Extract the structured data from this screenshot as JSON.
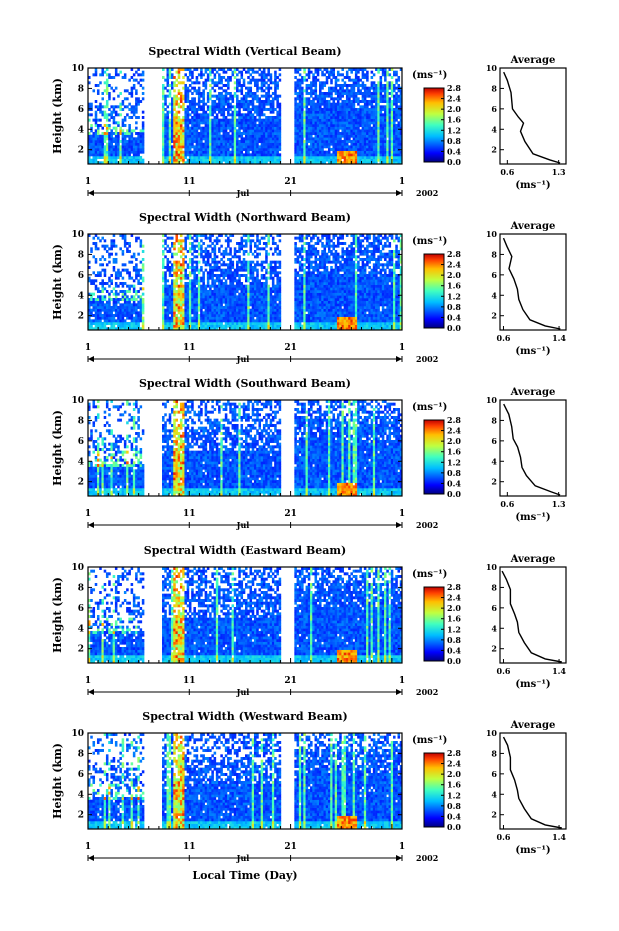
{
  "figure": {
    "xlabel": "Local Time (Day)",
    "month": "Jul",
    "year": "2002",
    "avg_title": "Average"
  },
  "chart_data": [
    {
      "type": "heatmap",
      "title": "Spectral Width (Vertical Beam)",
      "ylabel": "Height (km)",
      "xlabel": "Local Time (Day)",
      "x_ticks": [
        "1",
        "11",
        "21",
        "1"
      ],
      "xlim": [
        1,
        32
      ],
      "y_ticks": [
        "2",
        "4",
        "6",
        "8",
        "10"
      ],
      "ylim": [
        0.6,
        10
      ],
      "colorbar": {
        "label": "(ms⁻¹)",
        "ticks": [
          "0.0",
          "0.4",
          "0.8",
          "1.2",
          "1.6",
          "2.0",
          "2.4",
          "2.8"
        ],
        "range": [
          0,
          2.8
        ]
      },
      "data_gaps_days": [
        [
          6.5,
          8.2
        ],
        [
          20.0,
          21.3
        ]
      ],
      "average": {
        "title": "Average",
        "xlabel": "(ms⁻¹)",
        "x_ticks": [
          "0.6",
          "1.3"
        ],
        "xlim": [
          0.5,
          1.4
        ],
        "y_ticks": [
          "2",
          "4",
          "6",
          "8",
          "10"
        ],
        "ylim": [
          0.6,
          10
        ],
        "profile": [
          [
            0.55,
            9.6
          ],
          [
            0.6,
            8.8
          ],
          [
            0.65,
            7.6
          ],
          [
            0.67,
            6.0
          ],
          [
            0.75,
            5.2
          ],
          [
            0.82,
            4.6
          ],
          [
            0.78,
            3.8
          ],
          [
            0.84,
            2.8
          ],
          [
            0.95,
            1.6
          ],
          [
            1.18,
            1.0
          ],
          [
            1.32,
            0.7
          ]
        ]
      }
    },
    {
      "type": "heatmap",
      "title": "Spectral Width (Northward Beam)",
      "ylabel": "Height (km)",
      "xlabel": "Local Time (Day)",
      "x_ticks": [
        "1",
        "11",
        "21",
        "1"
      ],
      "xlim": [
        1,
        32
      ],
      "y_ticks": [
        "2",
        "4",
        "6",
        "8",
        "10"
      ],
      "ylim": [
        0.6,
        10
      ],
      "colorbar": {
        "label": "(ms⁻¹)",
        "ticks": [
          "0.0",
          "0.4",
          "0.8",
          "1.2",
          "1.6",
          "2.0",
          "2.4",
          "2.8"
        ],
        "range": [
          0,
          2.8
        ]
      },
      "data_gaps_days": [
        [
          6.5,
          8.2
        ],
        [
          20.0,
          21.3
        ]
      ],
      "average": {
        "title": "Average",
        "xlabel": "(ms⁻¹)",
        "x_ticks": [
          "0.6",
          "1.4"
        ],
        "xlim": [
          0.55,
          1.5
        ],
        "y_ticks": [
          "2",
          "4",
          "6",
          "8",
          "10"
        ],
        "ylim": [
          0.6,
          10
        ],
        "profile": [
          [
            0.6,
            9.6
          ],
          [
            0.65,
            8.8
          ],
          [
            0.72,
            7.8
          ],
          [
            0.68,
            6.6
          ],
          [
            0.75,
            5.6
          ],
          [
            0.8,
            4.6
          ],
          [
            0.82,
            3.6
          ],
          [
            0.88,
            2.6
          ],
          [
            0.98,
            1.6
          ],
          [
            1.2,
            1.0
          ],
          [
            1.42,
            0.7
          ]
        ]
      }
    },
    {
      "type": "heatmap",
      "title": "Spectral Width (Southward Beam)",
      "ylabel": "Height (km)",
      "xlabel": "Local Time (Day)",
      "x_ticks": [
        "1",
        "11",
        "21",
        "1"
      ],
      "xlim": [
        1,
        32
      ],
      "y_ticks": [
        "2",
        "4",
        "6",
        "8",
        "10"
      ],
      "ylim": [
        0.6,
        10
      ],
      "colorbar": {
        "label": "(ms⁻¹)",
        "ticks": [
          "0.0",
          "0.4",
          "0.8",
          "1.2",
          "1.6",
          "2.0",
          "2.4",
          "2.8"
        ],
        "range": [
          0,
          2.8
        ]
      },
      "data_gaps_days": [
        [
          6.5,
          8.2
        ],
        [
          20.0,
          21.3
        ]
      ],
      "average": {
        "title": "Average",
        "xlabel": "(ms⁻¹)",
        "x_ticks": [
          "0.6",
          "1.3"
        ],
        "xlim": [
          0.5,
          1.4
        ],
        "y_ticks": [
          "2",
          "4",
          "6",
          "8",
          "10"
        ],
        "ylim": [
          0.6,
          10
        ],
        "profile": [
          [
            0.55,
            9.6
          ],
          [
            0.62,
            8.6
          ],
          [
            0.66,
            7.4
          ],
          [
            0.68,
            6.2
          ],
          [
            0.74,
            5.4
          ],
          [
            0.78,
            4.4
          ],
          [
            0.8,
            3.4
          ],
          [
            0.86,
            2.6
          ],
          [
            0.98,
            1.6
          ],
          [
            1.2,
            1.0
          ],
          [
            1.32,
            0.7
          ]
        ]
      }
    },
    {
      "type": "heatmap",
      "title": "Spectral Width (Eastward Beam)",
      "ylabel": "Height (km)",
      "xlabel": "Local Time (Day)",
      "x_ticks": [
        "1",
        "11",
        "21",
        "1"
      ],
      "xlim": [
        1,
        32
      ],
      "y_ticks": [
        "2",
        "4",
        "6",
        "8",
        "10"
      ],
      "ylim": [
        0.6,
        10
      ],
      "colorbar": {
        "label": "(ms⁻¹)",
        "ticks": [
          "0.0",
          "0.4",
          "0.8",
          "1.2",
          "1.6",
          "2.0",
          "2.4",
          "2.8"
        ],
        "range": [
          0,
          2.8
        ]
      },
      "data_gaps_days": [
        [
          6.5,
          8.2
        ],
        [
          20.0,
          21.3
        ]
      ],
      "average": {
        "title": "Average",
        "xlabel": "(ms⁻¹)",
        "x_ticks": [
          "0.6",
          "1.4"
        ],
        "xlim": [
          0.55,
          1.5
        ],
        "y_ticks": [
          "2",
          "4",
          "6",
          "8",
          "10"
        ],
        "ylim": [
          0.6,
          10
        ],
        "profile": [
          [
            0.58,
            9.6
          ],
          [
            0.64,
            8.8
          ],
          [
            0.7,
            7.8
          ],
          [
            0.7,
            6.4
          ],
          [
            0.76,
            5.4
          ],
          [
            0.8,
            4.6
          ],
          [
            0.82,
            3.6
          ],
          [
            0.9,
            2.6
          ],
          [
            1.0,
            1.6
          ],
          [
            1.2,
            1.0
          ],
          [
            1.44,
            0.7
          ]
        ]
      }
    },
    {
      "type": "heatmap",
      "title": "Spectral Width (Westward Beam)",
      "ylabel": "Height (km)",
      "xlabel": "Local Time (Day)",
      "x_ticks": [
        "1",
        "11",
        "21",
        "1"
      ],
      "xlim": [
        1,
        32
      ],
      "y_ticks": [
        "2",
        "4",
        "6",
        "8",
        "10"
      ],
      "ylim": [
        0.6,
        10
      ],
      "colorbar": {
        "label": "(ms⁻¹)",
        "ticks": [
          "0.0",
          "0.4",
          "0.8",
          "1.2",
          "1.6",
          "2.0",
          "2.4",
          "2.8"
        ],
        "range": [
          0,
          2.8
        ]
      },
      "data_gaps_days": [
        [
          6.5,
          8.2
        ],
        [
          20.0,
          21.3
        ]
      ],
      "average": {
        "title": "Average",
        "xlabel": "(ms⁻¹)",
        "x_ticks": [
          "0.6",
          "1.4"
        ],
        "xlim": [
          0.55,
          1.5
        ],
        "y_ticks": [
          "2",
          "4",
          "6",
          "8",
          "10"
        ],
        "ylim": [
          0.6,
          10
        ],
        "profile": [
          [
            0.6,
            9.6
          ],
          [
            0.66,
            8.8
          ],
          [
            0.7,
            7.6
          ],
          [
            0.7,
            6.4
          ],
          [
            0.76,
            5.4
          ],
          [
            0.8,
            4.4
          ],
          [
            0.82,
            3.6
          ],
          [
            0.9,
            2.6
          ],
          [
            1.0,
            1.6
          ],
          [
            1.2,
            1.0
          ],
          [
            1.44,
            0.7
          ]
        ]
      }
    }
  ]
}
